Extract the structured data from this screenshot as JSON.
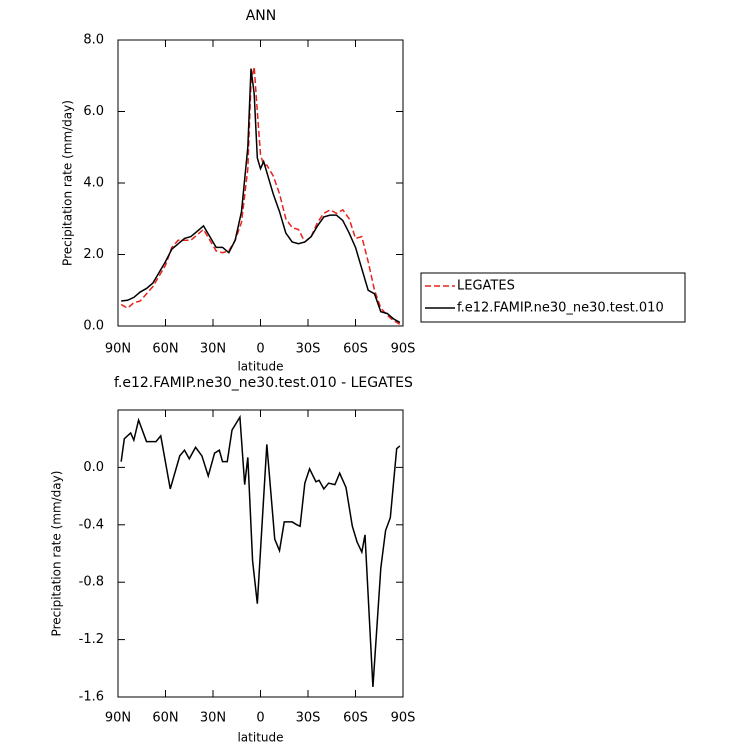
{
  "chart_data": [
    {
      "type": "line",
      "title": "ANN",
      "xlabel": "latitude",
      "ylabel": "Precipitation rate (mm/day)",
      "x": [
        88,
        84,
        80,
        76,
        72,
        68,
        64,
        60,
        56,
        52,
        48,
        44,
        40,
        36,
        32,
        28,
        24,
        20,
        16,
        12,
        8,
        6,
        4,
        2,
        0,
        -2,
        -4,
        -8,
        -12,
        -16,
        -20,
        -24,
        -28,
        -32,
        -36,
        -40,
        -44,
        -48,
        -52,
        -56,
        -60,
        -64,
        -68,
        -72,
        -76,
        -80,
        -84,
        -88
      ],
      "series": [
        {
          "name": "LEGATES",
          "color": "#e8231c",
          "dash": true,
          "values": [
            0.6,
            0.5,
            0.65,
            0.7,
            0.9,
            1.1,
            1.4,
            1.7,
            2.2,
            2.4,
            2.4,
            2.4,
            2.55,
            2.7,
            2.4,
            2.1,
            2.05,
            2.1,
            2.4,
            2.9,
            4.4,
            6.8,
            7.25,
            6.0,
            4.8,
            4.5,
            4.5,
            4.2,
            3.7,
            3.0,
            2.75,
            2.7,
            2.35,
            2.5,
            2.9,
            3.15,
            3.25,
            3.15,
            3.25,
            3.0,
            2.45,
            2.5,
            1.8,
            1.0,
            0.5,
            0.3,
            0.15,
            0.05
          ]
        },
        {
          "name": "f.e12.FAMIP.ne30_ne30.test.010",
          "color": "#000000",
          "dash": false,
          "values": [
            0.7,
            0.72,
            0.8,
            0.95,
            1.05,
            1.2,
            1.5,
            1.8,
            2.15,
            2.3,
            2.45,
            2.5,
            2.65,
            2.8,
            2.5,
            2.2,
            2.2,
            2.05,
            2.4,
            3.2,
            5.0,
            7.2,
            6.5,
            4.7,
            4.4,
            4.6,
            4.3,
            3.7,
            3.2,
            2.6,
            2.35,
            2.3,
            2.35,
            2.5,
            2.8,
            3.05,
            3.1,
            3.1,
            2.95,
            2.6,
            2.2,
            1.6,
            1.0,
            0.9,
            0.4,
            0.35,
            0.2,
            0.1
          ]
        }
      ],
      "xlim": [
        90,
        -90
      ],
      "xticks": [
        {
          "value": 90,
          "label": "90N"
        },
        {
          "value": 60,
          "label": "60N"
        },
        {
          "value": 30,
          "label": "30N"
        },
        0,
        {
          "value": -30,
          "label": "30S"
        },
        {
          "value": -60,
          "label": "60S"
        },
        {
          "value": -90,
          "label": "90S"
        }
      ],
      "ylim": [
        0,
        8
      ],
      "yticks": [
        {
          "value": 0,
          "label": "0.0"
        },
        {
          "value": 2,
          "label": "2.0"
        },
        {
          "value": 4,
          "label": "4.0"
        },
        {
          "value": 6,
          "label": "6.0"
        },
        {
          "value": 8,
          "label": "8.0"
        }
      ],
      "legend": "right"
    },
    {
      "type": "line",
      "title": "f.e12.FAMIP.ne30_ne30.test.010 - LEGATES",
      "xlabel": "latitude",
      "ylabel": "Precipitation rate (mm/day)",
      "x": [
        88,
        86,
        82,
        80,
        77,
        72,
        66,
        63,
        57,
        51,
        48,
        45,
        41,
        37,
        33,
        29,
        26,
        24,
        21,
        18,
        13,
        10,
        8,
        5,
        2,
        -4,
        -9,
        -12,
        -15,
        -20,
        -23,
        -25,
        -28,
        -31,
        -35,
        -37,
        -40,
        -43,
        -47,
        -50,
        -54,
        -58,
        -61,
        -64,
        -66,
        -71,
        -76,
        -79,
        -82,
        -86,
        -88
      ],
      "color": "#000000",
      "values": [
        0.04,
        0.2,
        0.24,
        0.19,
        0.33,
        0.18,
        0.18,
        0.22,
        -0.15,
        0.08,
        0.12,
        0.06,
        0.14,
        0.08,
        -0.06,
        0.1,
        0.12,
        0.04,
        0.04,
        0.26,
        0.35,
        -0.12,
        0.07,
        -0.65,
        -0.95,
        0.16,
        -0.5,
        -0.58,
        -0.38,
        -0.38,
        -0.4,
        -0.41,
        -0.11,
        -0.01,
        -0.1,
        -0.09,
        -0.15,
        -0.11,
        -0.12,
        -0.04,
        -0.14,
        -0.41,
        -0.52,
        -0.59,
        -0.47,
        -1.53,
        -0.7,
        -0.44,
        -0.35,
        0.13,
        0.15
      ],
      "xlim": [
        90,
        -90
      ],
      "xticks": [
        {
          "value": 90,
          "label": "90N"
        },
        {
          "value": 60,
          "label": "60N"
        },
        {
          "value": 30,
          "label": "30N"
        },
        0,
        {
          "value": -30,
          "label": "30S"
        },
        {
          "value": -60,
          "label": "60S"
        },
        {
          "value": -90,
          "label": "90S"
        }
      ],
      "ylim": [
        -1.6,
        0.4
      ],
      "yticks": [
        {
          "value": 0,
          "label": "0.0"
        },
        -0.4,
        -0.8,
        -1.2,
        -1.6
      ]
    }
  ]
}
